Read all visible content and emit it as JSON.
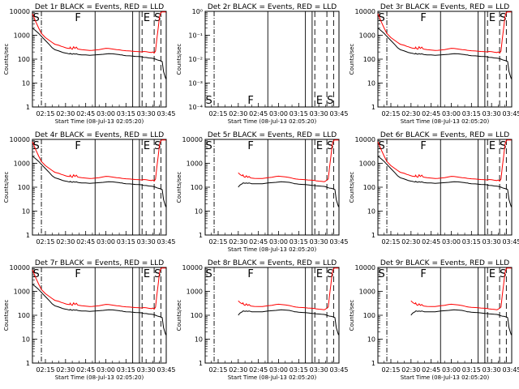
{
  "chart_data": {
    "type": "line",
    "xlabel": "Start Time (08-Jul-13 02:05:20)",
    "x_ticks": [
      "02:15",
      "02:30",
      "02:45",
      "03:00",
      "03:15",
      "03:30",
      "03:45"
    ],
    "x_range": [
      "02:05:20",
      "03:45"
    ],
    "y_scale": "log",
    "ylabel": "Counts/sec",
    "y_ticks_counts": [
      "1",
      "10",
      "100",
      "1000",
      "10000"
    ],
    "y_ticks_det2": [
      "10⁻⁴",
      "10⁻³",
      "10⁻²",
      "10⁻¹",
      "10⁰"
    ],
    "marker_letters": [
      "S",
      "F",
      "E",
      "S"
    ],
    "line_colors": {
      "events": "#000000",
      "lld": "#ff0000"
    },
    "panels": [
      {
        "title": "Det 1r BLACK = Events, RED = LLD",
        "ylabel": "Counts/sec",
        "has_xlabel": true,
        "style": "full"
      },
      {
        "title": "Det 2r BLACK = Events, RED = LLD",
        "ylabel": "Counts/sec",
        "has_xlabel": true,
        "style": "empty"
      },
      {
        "title": "Det 3r BLACK = Events, RED = LLD",
        "ylabel": "Counts/sec",
        "has_xlabel": true,
        "style": "full"
      },
      {
        "title": "Det 4r BLACK = Events, RED = LLD",
        "ylabel": "Counts/sec",
        "has_xlabel": false,
        "style": "full"
      },
      {
        "title": "Det 5r BLACK = Events, RED = LLD",
        "ylabel": "Counts/sec",
        "has_xlabel": true,
        "style": "short"
      },
      {
        "title": "Det 6r BLACK = Events, RED = LLD",
        "ylabel": "Counts/sec",
        "has_xlabel": false,
        "style": "full"
      },
      {
        "title": "Det 7r BLACK = Events, RED = LLD",
        "ylabel": "Counts/sec",
        "has_xlabel": true,
        "style": "full"
      },
      {
        "title": "Det 8r BLACK = Events, RED = LLD",
        "ylabel": "Counts/sec",
        "has_xlabel": true,
        "style": "short"
      },
      {
        "title": "Det 9r BLACK = Events, RED = LLD",
        "ylabel": "Counts/sec",
        "has_xlabel": true,
        "style": "short"
      }
    ],
    "series_minutes": [
      5.33,
      8,
      10,
      12,
      15,
      18,
      20,
      22,
      25,
      27,
      28,
      30,
      31,
      32,
      33,
      33.5,
      34,
      35,
      36,
      37,
      38,
      39,
      40,
      42,
      45,
      48,
      50,
      52,
      55,
      58,
      60,
      62,
      65,
      68,
      70,
      71,
      72,
      73,
      75,
      78,
      80,
      82,
      85,
      87,
      88,
      90,
      92,
      94,
      95,
      96,
      97,
      98,
      99,
      100,
      101,
      102,
      103,
      104,
      104.67
    ],
    "lld_full": [
      8000,
      3500,
      2000,
      1200,
      800,
      600,
      500,
      420,
      380,
      340,
      330,
      300,
      290,
      285,
      280,
      320,
      280,
      260,
      330,
      280,
      320,
      270,
      260,
      250,
      240,
      230,
      235,
      240,
      250,
      270,
      285,
      280,
      265,
      250,
      245,
      240,
      235,
      230,
      225,
      220,
      215,
      210,
      205,
      200,
      210,
      205,
      195,
      190,
      200,
      180,
      220,
      700,
      2000,
      6000,
      9000,
      9500,
      9500,
      9500,
      9500
    ],
    "events_full": [
      2000,
      1500,
      1200,
      900,
      600,
      400,
      300,
      250,
      220,
      200,
      190,
      180,
      175,
      170,
      165,
      175,
      168,
      160,
      170,
      162,
      168,
      160,
      155,
      150,
      150,
      145,
      148,
      150,
      155,
      160,
      165,
      170,
      168,
      160,
      155,
      150,
      150,
      145,
      140,
      138,
      135,
      130,
      128,
      125,
      120,
      118,
      112,
      110,
      108,
      105,
      100,
      95,
      90,
      88,
      85,
      80,
      30,
      20,
      15
    ],
    "lld_short": [
      null,
      null,
      null,
      null,
      null,
      null,
      null,
      null,
      null,
      null,
      null,
      400,
      350,
      320,
      300,
      330,
      280,
      260,
      300,
      260,
      280,
      250,
      240,
      235,
      230,
      230,
      240,
      250,
      260,
      280,
      290,
      280,
      270,
      255,
      240,
      230,
      225,
      220,
      215,
      210,
      205,
      200,
      195,
      190,
      185,
      180,
      175,
      170,
      180,
      200,
      220,
      700,
      2000,
      6000,
      9000,
      9500,
      9500,
      9500,
      9500
    ],
    "events_short": [
      null,
      null,
      null,
      null,
      null,
      null,
      null,
      null,
      null,
      null,
      null,
      100,
      120,
      130,
      140,
      150,
      150,
      145,
      150,
      145,
      150,
      145,
      140,
      140,
      140,
      140,
      145,
      150,
      155,
      160,
      165,
      170,
      165,
      160,
      150,
      145,
      140,
      140,
      135,
      130,
      128,
      125,
      120,
      118,
      115,
      112,
      110,
      108,
      105,
      100,
      95,
      92,
      90,
      88,
      85,
      80,
      30,
      20,
      15
    ]
  }
}
